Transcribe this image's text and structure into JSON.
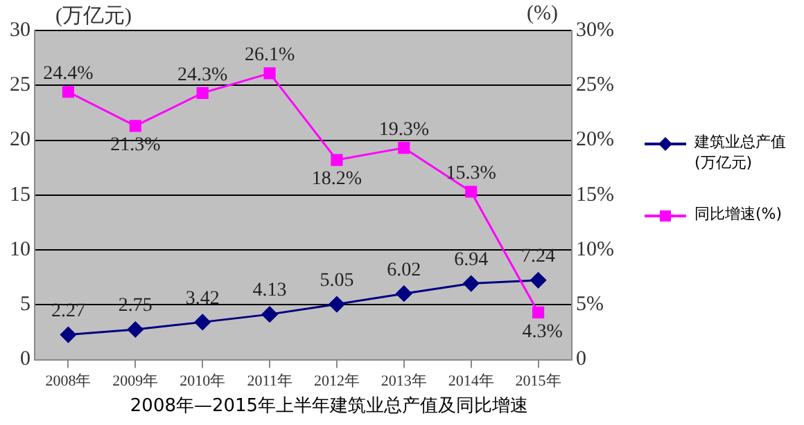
{
  "chart_data": {
    "type": "line",
    "title": "2008年—2015年上半年建筑业总产值及同比增速",
    "ylabel": "(万亿元)",
    "y2label": "(%)",
    "categories": [
      "2008年",
      "2009年",
      "2010年",
      "2011年",
      "2012年",
      "2013年",
      "2014年",
      "2015年"
    ],
    "series": [
      {
        "name": "建筑业总产值(万亿元)",
        "color": "#000080",
        "marker": "diamond",
        "values": [
          2.27,
          2.75,
          3.42,
          4.13,
          5.05,
          6.02,
          6.94,
          7.24
        ],
        "value_labels": [
          "2.27",
          "2.75",
          "3.42",
          "4.13",
          "5.05",
          "6.02",
          "6.94",
          "7.24"
        ]
      },
      {
        "name": "同比增速(%)",
        "color": "#ff00ff",
        "marker": "square",
        "axis": "y2",
        "values": [
          24.4,
          21.3,
          24.3,
          26.1,
          18.2,
          19.3,
          15.3,
          4.3
        ],
        "value_labels": [
          "24.4%",
          "21.3%",
          "24.3%",
          "26.1%",
          "18.2%",
          "19.3%",
          "15.3%",
          "4.3%"
        ]
      }
    ],
    "ylim": [
      0,
      30
    ],
    "yticks": [
      0,
      5,
      10,
      15,
      20,
      25,
      30
    ],
    "y2lim": [
      0,
      30
    ],
    "y2ticks": [
      0,
      {
        "value": 5,
        "label": "5%"
      },
      {
        "value": 10,
        "label": "10%"
      },
      {
        "value": 15,
        "label": "15%"
      },
      {
        "value": 20,
        "label": "20%"
      },
      {
        "value": 25,
        "label": "25%"
      },
      {
        "value": 30,
        "label": "30%"
      }
    ],
    "grid": "y",
    "legend": "right"
  }
}
